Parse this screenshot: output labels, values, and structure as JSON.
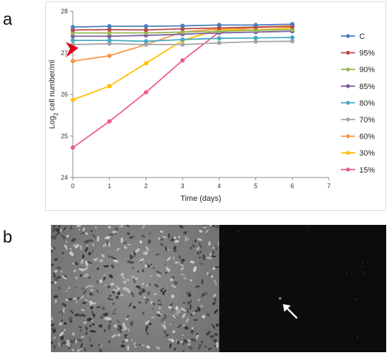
{
  "panel_labels": {
    "a": "a",
    "b": "b"
  },
  "chart_data": {
    "type": "line",
    "xlabel": "Time (days)",
    "ylabel": "Log",
    "ylabel_sub": "2",
    "ylabel_rest": " cell number/ml",
    "xlim": [
      0,
      7
    ],
    "ylim": [
      24,
      28
    ],
    "x_ticks": [
      0,
      1,
      2,
      3,
      4,
      5,
      6,
      7
    ],
    "y_ticks": [
      24,
      25,
      26,
      27,
      28
    ],
    "grid": false,
    "legend_position": "right",
    "x": [
      0,
      1,
      2,
      3,
      4,
      5,
      6
    ],
    "series": [
      {
        "name": "C",
        "color": "#4a7ebb",
        "values": [
          27.62,
          27.64,
          27.64,
          27.65,
          27.67,
          27.67,
          27.69
        ]
      },
      {
        "name": "95%",
        "color": "#be4b48",
        "values": [
          27.55,
          27.56,
          27.55,
          27.58,
          27.6,
          27.62,
          27.63
        ]
      },
      {
        "name": "90%",
        "color": "#98b954",
        "values": [
          27.48,
          27.48,
          27.48,
          27.5,
          27.52,
          27.54,
          27.56
        ]
      },
      {
        "name": "85%",
        "color": "#7d60a0",
        "values": [
          27.4,
          27.4,
          27.42,
          27.45,
          27.48,
          27.5,
          27.52
        ]
      },
      {
        "name": "80%",
        "color": "#46aac4",
        "values": [
          27.3,
          27.3,
          27.28,
          27.32,
          27.35,
          27.36,
          27.37
        ]
      },
      {
        "name": "70%",
        "color": "#a5a5a5",
        "values": [
          27.2,
          27.22,
          27.2,
          27.2,
          27.24,
          27.27,
          27.28
        ]
      },
      {
        "name": "60%",
        "color": "#f79646",
        "values": [
          26.8,
          26.93,
          27.2,
          27.5,
          27.58,
          27.6,
          27.66
        ]
      },
      {
        "name": "30%",
        "color": "#ffc000",
        "values": [
          25.87,
          26.2,
          26.75,
          27.3,
          27.56,
          27.55,
          27.6
        ]
      },
      {
        "name": "15%",
        "color": "#ef5a8c",
        "values": [
          24.72,
          25.35,
          26.05,
          26.82,
          27.5,
          27.62,
          27.65
        ]
      }
    ],
    "marker_color": "#e0001b"
  },
  "micrographs": {
    "left": "phase contrast",
    "right": "fluorescence",
    "arrow_color": "#ffffff"
  }
}
